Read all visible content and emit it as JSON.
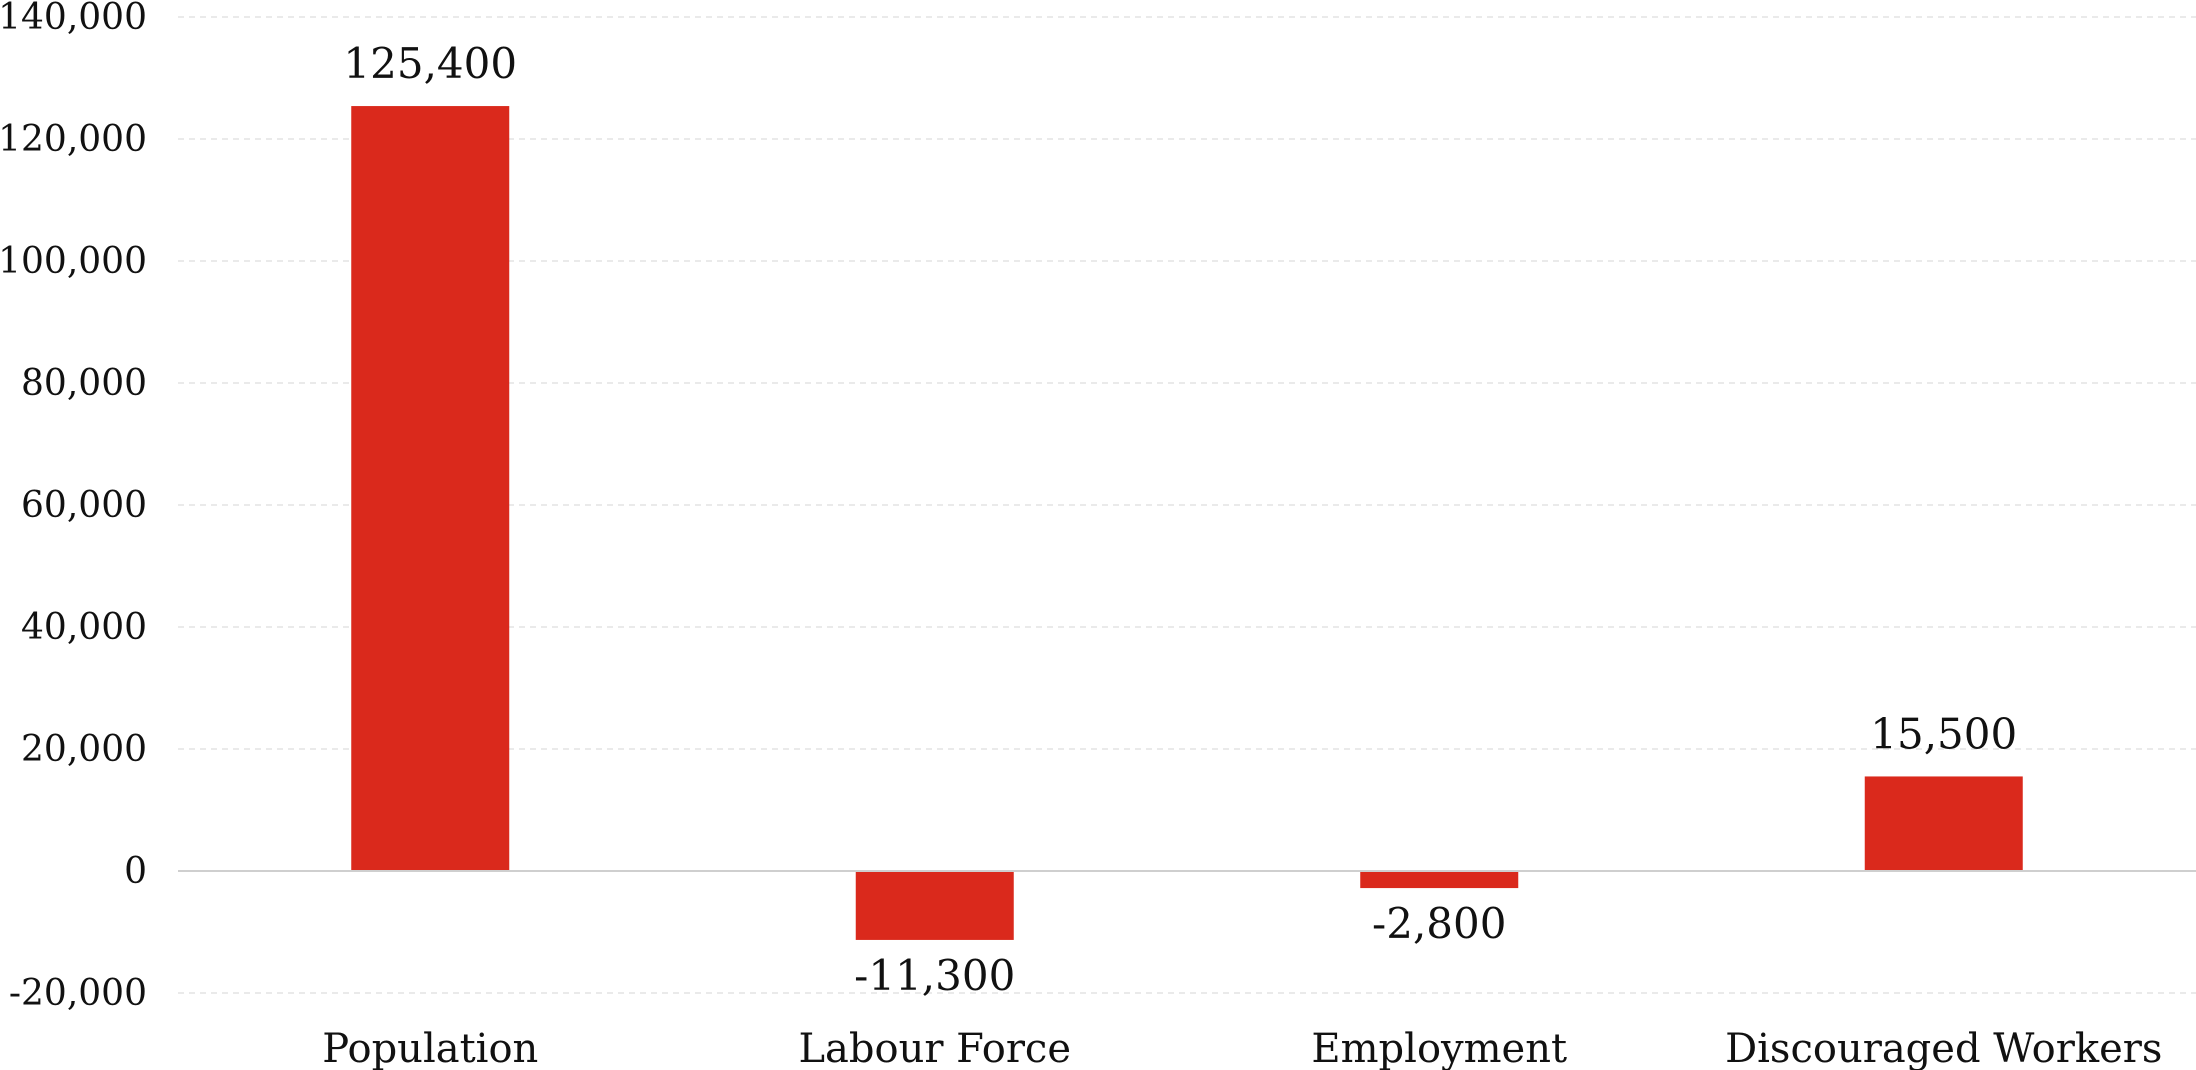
{
  "chart_data": {
    "type": "bar",
    "title": "",
    "xlabel": "",
    "ylabel": "",
    "categories": [
      "Population",
      "Labour Force",
      "Employment",
      "Discouraged Workers"
    ],
    "values": [
      125400,
      -11300,
      -2800,
      15500
    ],
    "value_labels": [
      "125,400",
      "-11,300",
      "-2,800",
      "15,500"
    ],
    "ylim": [
      -20000,
      140000
    ],
    "yticks": [
      -20000,
      0,
      20000,
      40000,
      60000,
      80000,
      100000,
      120000,
      140000
    ],
    "ytick_labels": [
      "-20,000",
      "0",
      "20,000",
      "40,000",
      "60,000",
      "80,000",
      "100,000",
      "120,000",
      "140,000"
    ],
    "grid": true,
    "bar_color": "#da291c",
    "grid_color": "#e3e3e3"
  }
}
